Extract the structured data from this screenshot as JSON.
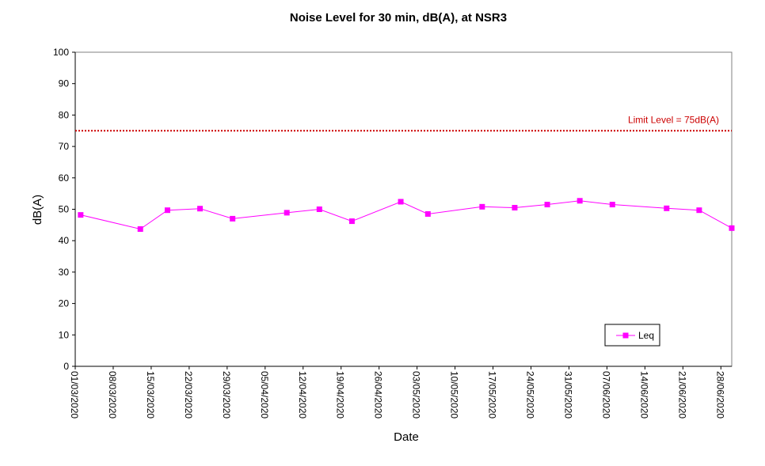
{
  "chart_data": {
    "type": "line",
    "title": "Noise Level for 30 min, dB(A), at NSR3",
    "xlabel": "Date",
    "ylabel": "dB(A)",
    "ylim": [
      0,
      100
    ],
    "yticks": [
      0,
      10,
      20,
      30,
      40,
      50,
      60,
      70,
      80,
      90,
      100
    ],
    "xlim": [
      "2020-03-01",
      "2020-06-30"
    ],
    "xtick_labels": [
      "01/03/2020",
      "08/03/2020",
      "15/03/2020",
      "22/03/2020",
      "29/03/2020",
      "05/04/2020",
      "12/04/2020",
      "19/04/2020",
      "26/04/2020",
      "03/05/2020",
      "10/05/2020",
      "17/05/2020",
      "24/05/2020",
      "31/05/2020",
      "07/06/2020",
      "14/06/2020",
      "21/06/2020",
      "28/06/2020"
    ],
    "xtick_dates": [
      "2020-03-01",
      "2020-03-08",
      "2020-03-15",
      "2020-03-22",
      "2020-03-29",
      "2020-04-05",
      "2020-04-12",
      "2020-04-19",
      "2020-04-26",
      "2020-05-03",
      "2020-05-10",
      "2020-05-17",
      "2020-05-24",
      "2020-05-31",
      "2020-06-07",
      "2020-06-14",
      "2020-06-21",
      "2020-06-28"
    ],
    "grid": false,
    "series": [
      {
        "name": "Leq",
        "color": "#ff00ff",
        "marker": "square",
        "x": [
          "2020-03-02",
          "2020-03-13",
          "2020-03-18",
          "2020-03-24",
          "2020-03-30",
          "2020-04-09",
          "2020-04-15",
          "2020-04-21",
          "2020-04-30",
          "2020-05-05",
          "2020-05-15",
          "2020-05-21",
          "2020-05-27",
          "2020-06-02",
          "2020-06-08",
          "2020-06-18",
          "2020-06-24",
          "2020-06-30"
        ],
        "y": [
          48.2,
          43.7,
          49.7,
          50.2,
          47.0,
          48.9,
          50.0,
          46.2,
          52.4,
          48.5,
          50.8,
          50.5,
          51.5,
          52.7,
          51.5,
          50.3,
          49.7,
          44.0
        ]
      }
    ],
    "reference_lines": [
      {
        "label": "Limit Level  = 75dB(A)",
        "y": 75,
        "color": "#cc0000",
        "style": "dotted"
      }
    ],
    "legend": {
      "position": "bottom-right",
      "entries": [
        "Leq"
      ]
    }
  }
}
